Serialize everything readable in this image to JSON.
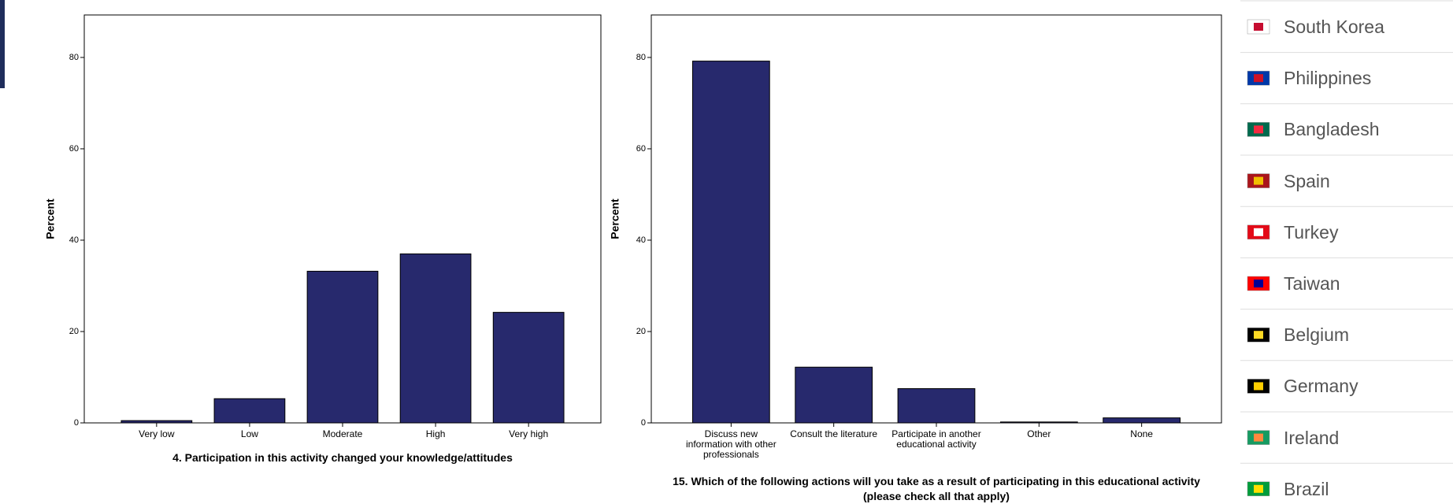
{
  "chart_data": [
    {
      "type": "bar",
      "ylabel": "Percent",
      "xlabel": "4. Participation in this activity changed your knowledge/attitudes",
      "categories": [
        "Very low",
        "Low",
        "Moderate",
        "High",
        "Very high"
      ],
      "values": [
        0.5,
        5.3,
        33.2,
        37.0,
        24.2
      ],
      "color": "#27296d",
      "ylim": [
        0,
        89.3
      ],
      "yticks": [
        0,
        20,
        40,
        60,
        80
      ]
    },
    {
      "type": "bar",
      "ylabel": "Percent",
      "xlabel": "15. Which of the following actions will you take as a result of participating in this educational activity (please check all that apply)",
      "categories": [
        "Discuss new information with other professionals",
        "Consult the literature",
        "Participate in another educational activity",
        "Other",
        "None"
      ],
      "values": [
        79.2,
        12.2,
        7.5,
        0.2,
        1.1
      ],
      "color": "#27296d",
      "ylim": [
        0,
        89.3
      ],
      "yticks": [
        0,
        20,
        40,
        60,
        80
      ]
    }
  ],
  "country_list": [
    "South Korea",
    "Philippines",
    "Bangladesh",
    "Spain",
    "Turkey",
    "Taiwan",
    "Belgium",
    "Germany",
    "Ireland",
    "Brazil"
  ]
}
